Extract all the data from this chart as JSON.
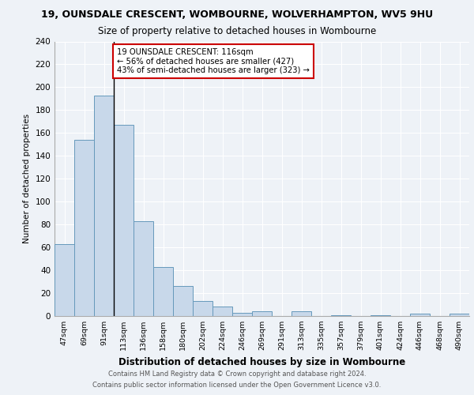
{
  "title1": "19, OUNSDALE CRESCENT, WOMBOURNE, WOLVERHAMPTON, WV5 9HU",
  "title2": "Size of property relative to detached houses in Wombourne",
  "xlabel": "Distribution of detached houses by size in Wombourne",
  "ylabel": "Number of detached properties",
  "categories": [
    "47sqm",
    "69sqm",
    "91sqm",
    "113sqm",
    "136sqm",
    "158sqm",
    "180sqm",
    "202sqm",
    "224sqm",
    "246sqm",
    "269sqm",
    "291sqm",
    "313sqm",
    "335sqm",
    "357sqm",
    "379sqm",
    "401sqm",
    "424sqm",
    "446sqm",
    "468sqm",
    "490sqm"
  ],
  "values": [
    63,
    154,
    193,
    167,
    83,
    43,
    26,
    13,
    8,
    3,
    4,
    0,
    4,
    0,
    1,
    0,
    1,
    0,
    2,
    0,
    2
  ],
  "bar_color": "#c8d8ea",
  "bar_edge_color": "#6699bb",
  "subject_bar_index": 3,
  "subject_line_color": "#000000",
  "annotation_text": "19 OUNSDALE CRESCENT: 116sqm\n← 56% of detached houses are smaller (427)\n43% of semi-detached houses are larger (323) →",
  "annotation_box_color": "#ffffff",
  "annotation_box_edge": "#cc0000",
  "ylim": [
    0,
    240
  ],
  "yticks": [
    0,
    20,
    40,
    60,
    80,
    100,
    120,
    140,
    160,
    180,
    200,
    220,
    240
  ],
  "footer1": "Contains HM Land Registry data © Crown copyright and database right 2024.",
  "footer2": "Contains public sector information licensed under the Open Government Licence v3.0.",
  "bg_color": "#eef2f7",
  "plot_bg_color": "#eef2f7"
}
